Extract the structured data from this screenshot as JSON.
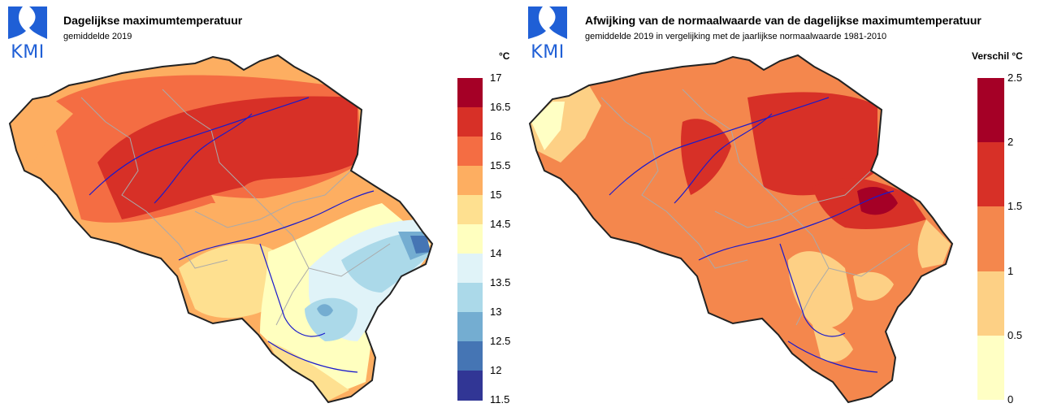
{
  "logo_text": "KMI",
  "left": {
    "title": "Dagelijkse maximumtemperatuur",
    "subtitle": "gemiddelde 2019",
    "unit": "°C",
    "legend": {
      "ticks": [
        "17",
        "16.5",
        "16",
        "15.5",
        "15",
        "14.5",
        "14",
        "13.5",
        "13",
        "12.5",
        "12",
        "11.5"
      ],
      "colors": [
        "#a50026",
        "#d73027",
        "#f46d43",
        "#fdae61",
        "#fee090",
        "#ffffbf",
        "#e0f3f8",
        "#abd9e9",
        "#74add1",
        "#4575b4",
        "#313695"
      ]
    }
  },
  "right": {
    "title": "Afwijking van de normaalwaarde van de dagelijkse maximumtemperatuur",
    "subtitle": "gemiddelde 2019 in vergelijking met de jaarlijkse normaalwaarde 1981-2010",
    "unit": "Verschil °C",
    "legend": {
      "ticks": [
        "2.5",
        "2",
        "1.5",
        "1",
        "0.5",
        "0"
      ],
      "colors": [
        "#a50026",
        "#d73027",
        "#f4874d",
        "#fdd085",
        "#ffffc4"
      ]
    }
  },
  "colors": {
    "logo": "#1f5fd6",
    "border": "#222222",
    "provinces": "#aaaaaa",
    "rivers": "#1a1acc"
  }
}
